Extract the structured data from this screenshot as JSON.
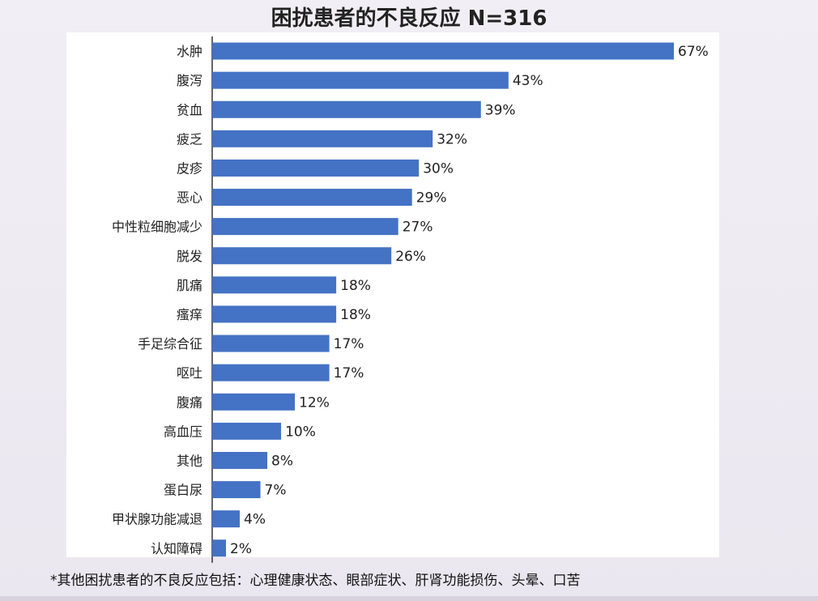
{
  "title": "困扰患者的不良反应 N=316",
  "footnote": "*其他困扰患者的不良反应包括：心理健康状态、眼部症状、肝肾功能损伤、头晕、口苦",
  "colors": {
    "bar": "#4472c4",
    "axis": "#000000",
    "text": "#222222"
  },
  "chart_data": {
    "type": "bar",
    "orientation": "horizontal",
    "categories": [
      "水肿",
      "腹泻",
      "贫血",
      "疲乏",
      "皮疹",
      "恶心",
      "中性粒细胞减少",
      "脱发",
      "肌痛",
      "瘙痒",
      "手足综合征",
      "呕吐",
      "腹痛",
      "高血压",
      "其他",
      "蛋白尿",
      "甲状腺功能减退",
      "认知障碍"
    ],
    "values": [
      67,
      43,
      39,
      32,
      30,
      29,
      27,
      26,
      18,
      18,
      17,
      17,
      12,
      10,
      8,
      7,
      4,
      2
    ],
    "data_labels": [
      "67%",
      "43%",
      "39%",
      "32%",
      "30%",
      "29%",
      "27%",
      "26%",
      "18%",
      "18%",
      "17%",
      "17%",
      "12%",
      "10%",
      "8%",
      "7%",
      "4%",
      "2%"
    ],
    "unit": "%",
    "xlim": [
      0,
      67
    ],
    "grid": false,
    "legend": "none"
  }
}
